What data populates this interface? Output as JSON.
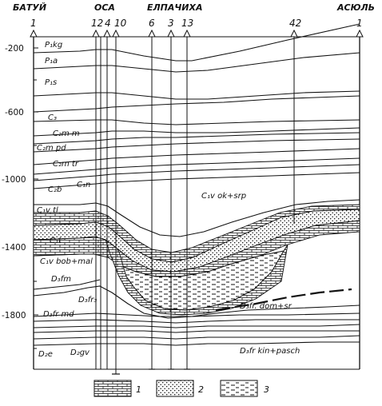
{
  "localities": {
    "batuy": "БАТУЙ",
    "osa": "ОСА",
    "elpachikha": "ЕЛПАЧИХА",
    "asyul": "АСЮЛЬ"
  },
  "wells": [
    "1",
    "12",
    "4",
    "10",
    "6",
    "3",
    "13",
    "42",
    "1"
  ],
  "depth_ticks": [
    "-200",
    "-600",
    "-1000",
    "-1400",
    "-1800"
  ],
  "strata": {
    "p1kg": "P₁kg",
    "p1a": "P₁a",
    "p1s": "P₁s",
    "c3": "C₃",
    "c2mm": "C₂m m",
    "c2mpd": "C₂m pd",
    "c2mtr": "C₂m tr",
    "c2b": "C₂b",
    "c1n": "C₁n",
    "c1v_ok": "C₁v ok+srp",
    "c1vtl": "C₁v tl",
    "c1t": "C₁t",
    "c1v_bob": "C₁v bob+mal",
    "d3fm": "D₃fm",
    "d3fr3": "D₃fr₃",
    "d3fr_md": "D₃fr md",
    "d3fr_dom": "D₃fr. dom+sr",
    "d3fr_kin": "D₃fr kin+pasch",
    "d2e": "D₂e",
    "d2gv": "D₂gv"
  },
  "legend": [
    "1",
    "2",
    "3"
  ]
}
